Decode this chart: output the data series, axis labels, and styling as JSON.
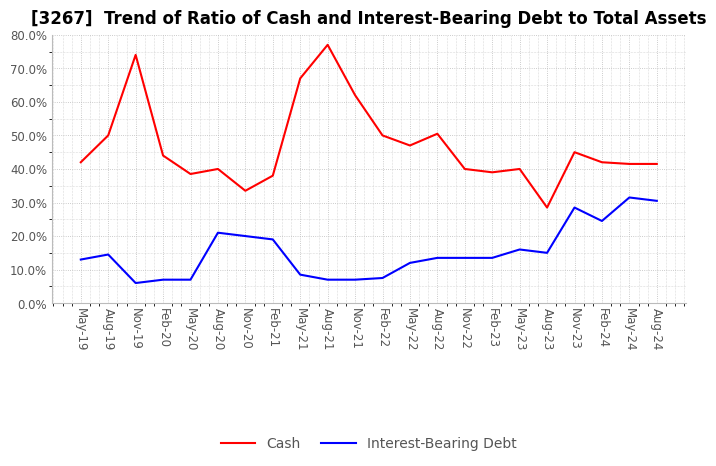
{
  "title": "[3267]  Trend of Ratio of Cash and Interest-Bearing Debt to Total Assets",
  "x_labels": [
    "May-19",
    "Aug-19",
    "Nov-19",
    "Feb-20",
    "May-20",
    "Aug-20",
    "Nov-20",
    "Feb-21",
    "May-21",
    "Aug-21",
    "Nov-21",
    "Feb-22",
    "May-22",
    "Aug-22",
    "Nov-22",
    "Feb-23",
    "May-23",
    "Aug-23",
    "Nov-23",
    "Feb-24",
    "May-24",
    "Aug-24"
  ],
  "cash": [
    42.0,
    50.0,
    74.0,
    44.0,
    38.5,
    40.0,
    33.5,
    38.0,
    67.0,
    77.0,
    62.0,
    50.0,
    47.0,
    50.5,
    40.0,
    39.0,
    40.0,
    28.5,
    45.0,
    42.0,
    41.5,
    41.5
  ],
  "interest_bearing_debt": [
    13.0,
    14.5,
    6.0,
    7.0,
    7.0,
    21.0,
    20.0,
    19.0,
    8.5,
    7.0,
    7.0,
    7.5,
    12.0,
    13.5,
    13.5,
    13.5,
    16.0,
    15.0,
    28.5,
    24.5,
    31.5,
    30.5
  ],
  "cash_color": "#FF0000",
  "debt_color": "#0000FF",
  "ylim": [
    0.0,
    80.0
  ],
  "background_color": "#FFFFFF",
  "grid_color": "#BBBBBB",
  "title_fontsize": 12,
  "tick_fontsize": 8.5,
  "legend_fontsize": 10
}
